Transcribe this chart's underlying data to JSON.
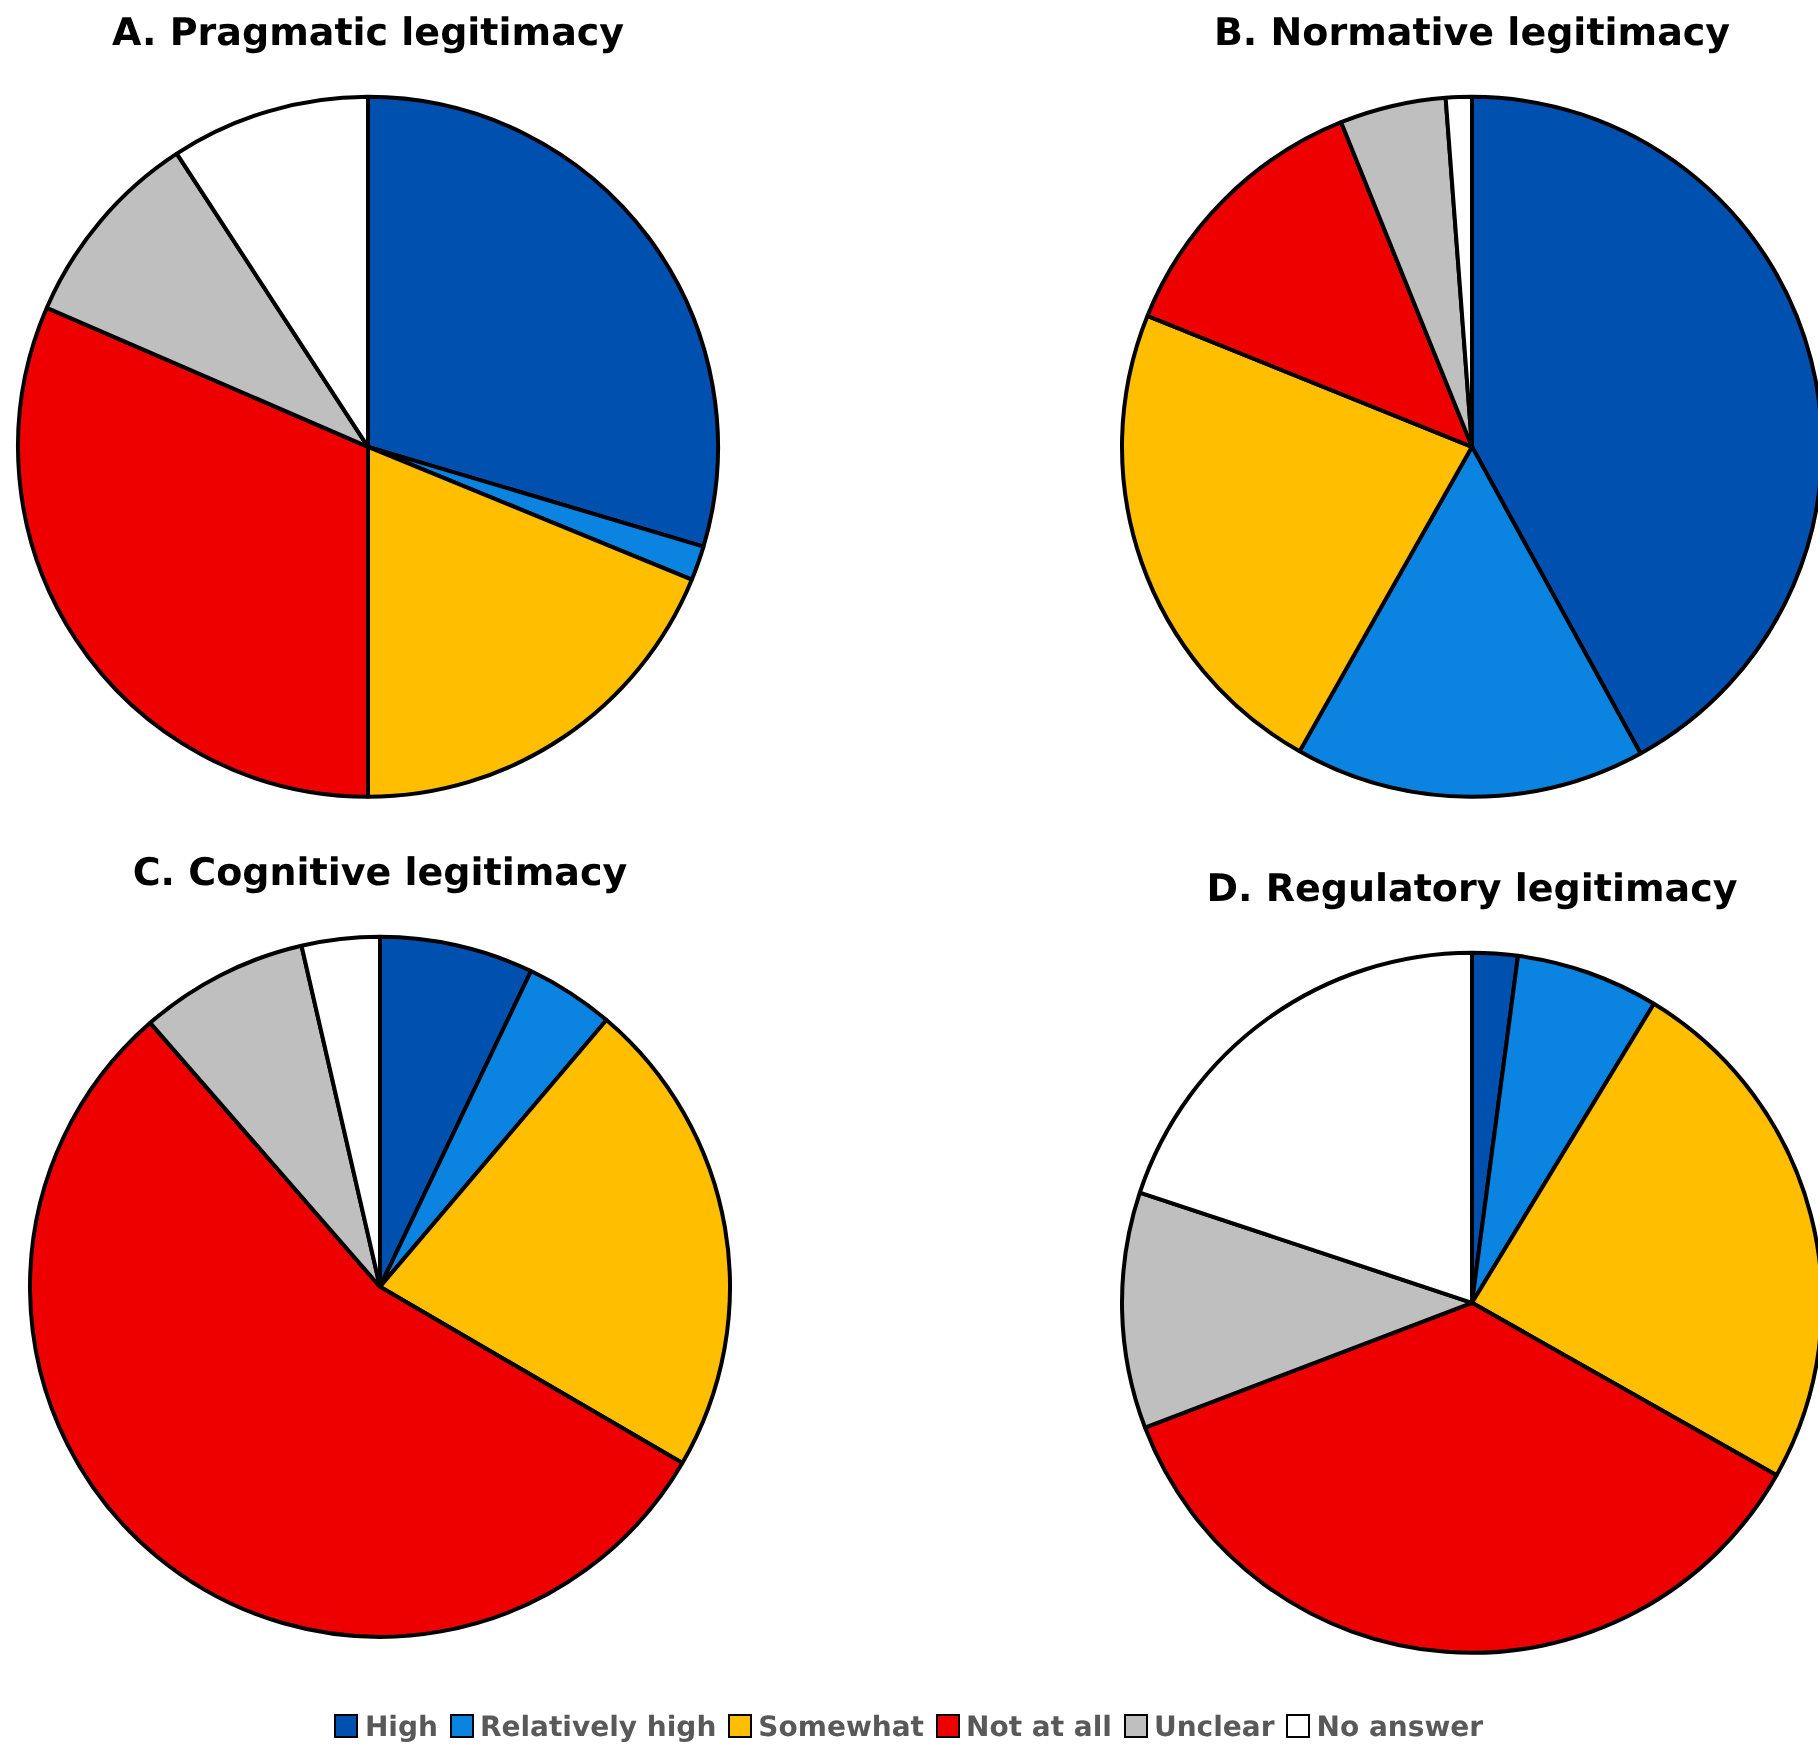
{
  "chart_data": [
    {
      "type": "pie",
      "title": "A. Pragmatic legitimacy",
      "categories": [
        "High",
        "Relatively high",
        "Somewhat",
        "Not at all",
        "Unclear",
        "No answer"
      ],
      "values": [
        29.6,
        1.6,
        18.8,
        31.5,
        9.3,
        9.2
      ],
      "colors": [
        "#0050b0",
        "#0a84e0",
        "#ffbf00",
        "#ee0000",
        "#bfbfbf",
        "#ffffff"
      ],
      "legend": "bottom"
    },
    {
      "type": "pie",
      "title": "B. Normative legitimacy",
      "categories": [
        null,
        null,
        null,
        null,
        null,
        null
      ],
      "values": [
        42.0,
        16.2,
        22.9,
        12.8,
        4.9,
        1.2
      ],
      "colors": [
        "#0050b0",
        "#0a84e0",
        "#ffbf00",
        "#ee0000",
        "#bfbfbf",
        "#ffffff"
      ]
    },
    {
      "type": "pie",
      "title": "C. Cognitive legitimacy",
      "categories": [
        null,
        null,
        null,
        null,
        null,
        null
      ],
      "values": [
        7.1,
        4.1,
        22.2,
        55.2,
        7.8,
        3.6
      ],
      "colors": [
        "#0050b0",
        "#0a84e0",
        "#ffbf00",
        "#ee0000",
        "#bfbfbf",
        "#ffffff"
      ]
    },
    {
      "type": "pie",
      "title": "D. Regulatory legitimacy",
      "categories": [
        null,
        null,
        null,
        null,
        null,
        null
      ],
      "values": [
        2.1,
        6.6,
        24.5,
        36.0,
        10.9,
        19.9
      ],
      "colors": [
        "#0050b0",
        "#0a84e0",
        "#ffbf00",
        "#ee0000",
        "#bfbfbf",
        "#ffffff"
      ]
    }
  ]
}
